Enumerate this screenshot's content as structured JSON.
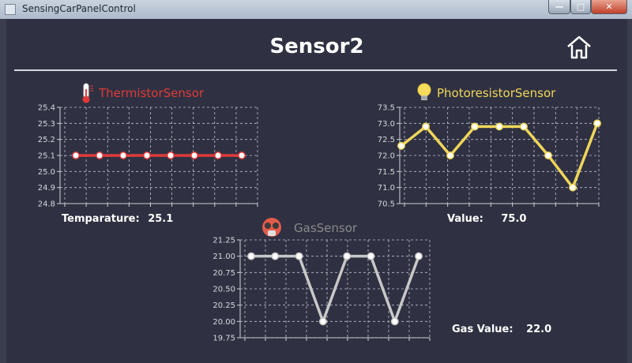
{
  "window": {
    "title": "SensingCarPanelControl"
  },
  "page": {
    "title": "Sensor2"
  },
  "charts": {
    "thermistor": {
      "title": "ThermistorSensor",
      "value_label": "Temparature:",
      "value": "25.1"
    },
    "photoresistor": {
      "title": "PhotoresistorSensor",
      "value_label": "Value:",
      "value": "75.0"
    },
    "gas": {
      "title": "GasSensor",
      "value_label": "Gas Value:",
      "value": "22.0"
    }
  },
  "colors": {
    "thermistor": "#e03a3a",
    "photoresistor": "#f0d65a",
    "gas": "#c8c8c8",
    "gas_title": "#8a8a8a",
    "grid": "#bfc2ca"
  },
  "icons": {
    "home": "home-icon",
    "thermistor": "thermometer-icon",
    "photoresistor": "light-bulb-icon",
    "gas": "gas-mask-icon"
  },
  "chart_data": [
    {
      "type": "line",
      "title": "ThermistorSensor",
      "x": [
        1,
        2,
        3,
        4,
        5,
        6,
        7,
        8
      ],
      "series": [
        {
          "values": [
            25.1,
            25.1,
            25.1,
            25.1,
            25.1,
            25.1,
            25.1,
            25.1
          ]
        }
      ],
      "ylim": [
        24.8,
        25.4
      ],
      "yticks": [
        "24.8",
        "24.9",
        "25.0",
        "25.1",
        "25.2",
        "25.3",
        "25.4"
      ],
      "grid": true
    },
    {
      "type": "line",
      "title": "PhotoresistorSensor",
      "x": [
        1,
        2,
        3,
        4,
        5,
        6,
        7,
        8,
        9
      ],
      "series": [
        {
          "values": [
            72.3,
            72.9,
            72.0,
            72.9,
            72.9,
            72.9,
            72.0,
            71.0,
            73.0
          ]
        }
      ],
      "ylim": [
        70.5,
        73.5
      ],
      "yticks": [
        "70.5",
        "71.0",
        "71.5",
        "72.0",
        "72.5",
        "73.0",
        "73.5"
      ],
      "grid": true
    },
    {
      "type": "line",
      "title": "GasSensor",
      "x": [
        1,
        2,
        3,
        4,
        5,
        6,
        7,
        8
      ],
      "series": [
        {
          "values": [
            21.0,
            21.0,
            21.0,
            20.0,
            21.0,
            21.0,
            20.0,
            21.0
          ]
        }
      ],
      "ylim": [
        19.75,
        21.25
      ],
      "yticks": [
        "19.75",
        "20.00",
        "20.25",
        "20.50",
        "20.75",
        "21.00",
        "21.25"
      ],
      "grid": true
    }
  ]
}
